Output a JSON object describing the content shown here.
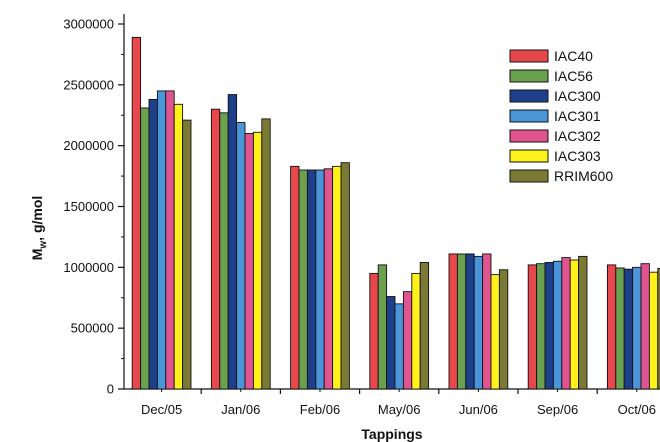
{
  "chart_data": {
    "type": "bar",
    "title": "",
    "xlabel": "Tappings",
    "ylabel": {
      "main": "M",
      "sub": "w",
      "rest": ", g/mol"
    },
    "ylim": [
      0,
      3000000
    ],
    "yticks": [
      0,
      500000,
      1000000,
      1500000,
      2000000,
      2500000,
      3000000
    ],
    "ytick_labels": [
      "0",
      "500000",
      "1000000",
      "1500000",
      "2000000",
      "2500000",
      "3000000"
    ],
    "categories": [
      "Dec/05",
      "Jan/06",
      "Feb/06",
      "May/06",
      "Jun/06",
      "Sep/06",
      "Oct/06"
    ],
    "legend_position": "top-right",
    "grid": false,
    "series": [
      {
        "name": "IAC40",
        "color": "#e8484c",
        "values": [
          2890000,
          2300000,
          1830000,
          950000,
          1110000,
          1020000,
          1020000
        ]
      },
      {
        "name": "IAC56",
        "color": "#6aa04e",
        "values": [
          2310000,
          2270000,
          1800000,
          1020000,
          1110000,
          1030000,
          995000
        ]
      },
      {
        "name": "IAC300",
        "color": "#1e3f8a",
        "values": [
          2380000,
          2420000,
          1800000,
          760000,
          1110000,
          1040000,
          985000
        ]
      },
      {
        "name": "IAC301",
        "color": "#4a95d8",
        "values": [
          2450000,
          2190000,
          1800000,
          700000,
          1090000,
          1050000,
          1000000
        ]
      },
      {
        "name": "IAC302",
        "color": "#e0558f",
        "values": [
          2450000,
          2100000,
          1810000,
          800000,
          1110000,
          1080000,
          1030000
        ]
      },
      {
        "name": "IAC303",
        "color": "#fff21a",
        "values": [
          2340000,
          2110000,
          1830000,
          950000,
          940000,
          1060000,
          960000
        ]
      },
      {
        "name": "RRIM600",
        "color": "#7a7a35",
        "values": [
          2210000,
          2220000,
          1860000,
          1040000,
          980000,
          1090000,
          990000
        ]
      }
    ]
  }
}
